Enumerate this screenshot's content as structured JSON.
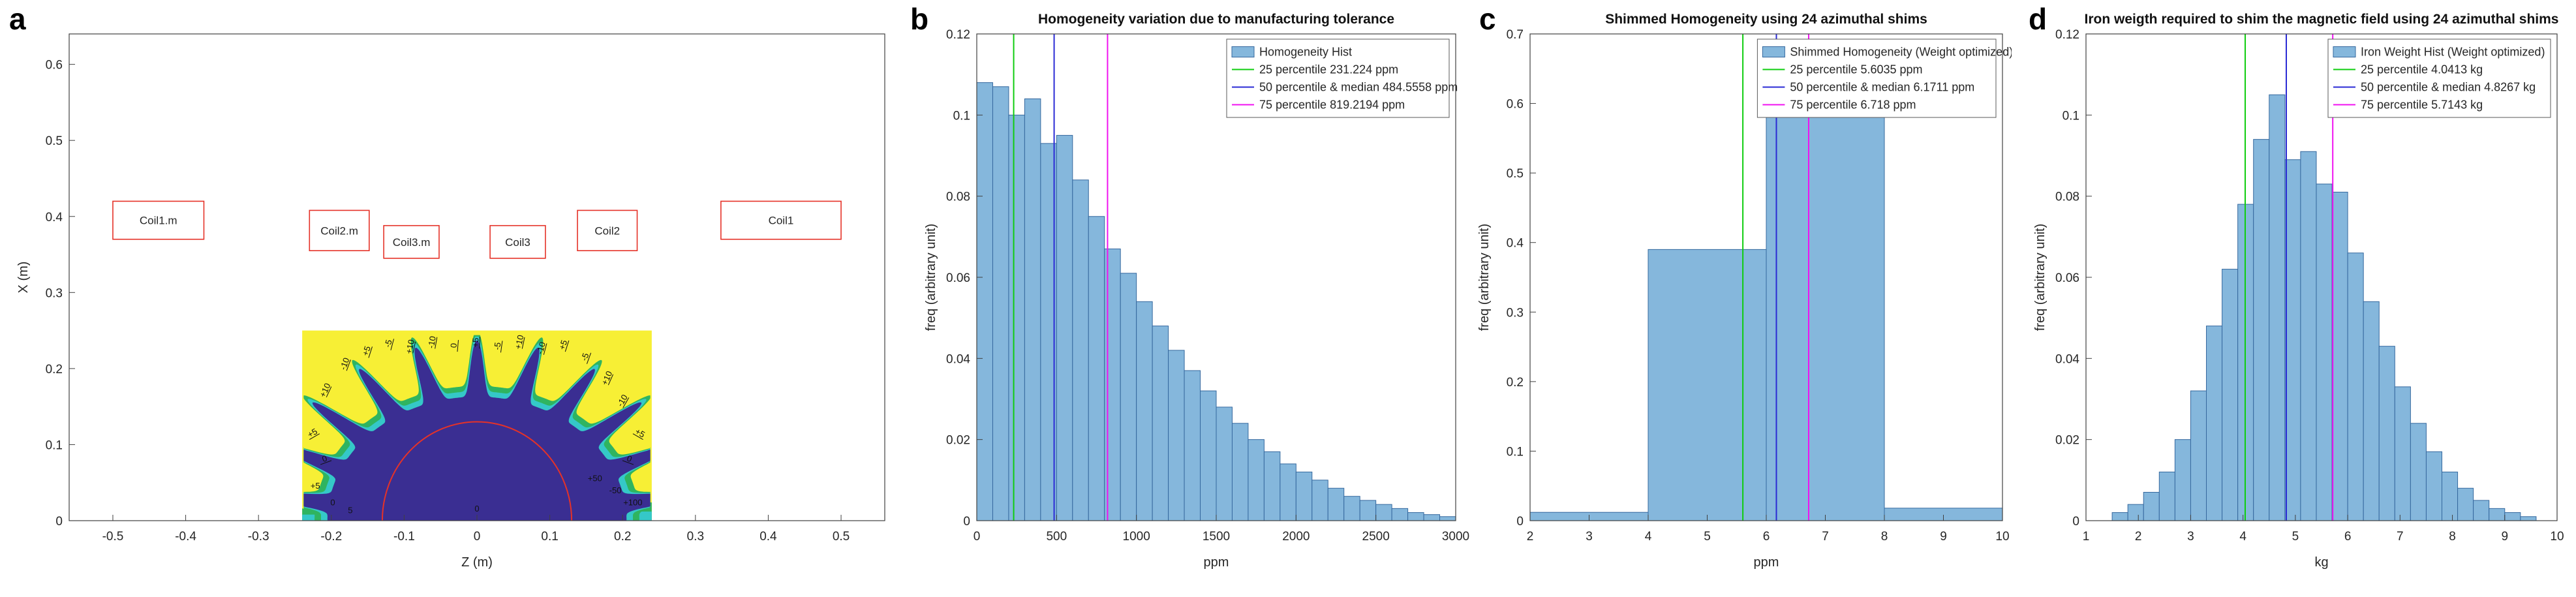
{
  "figure": {
    "panels": [
      {
        "letter": "a"
      },
      {
        "letter": "b"
      },
      {
        "letter": "c"
      },
      {
        "letter": "d"
      }
    ]
  },
  "colors": {
    "bar_face": "#85b7dc",
    "bar_edge": "#35689e",
    "p25": "#0ecc0e",
    "p50": "#2a2ad4",
    "p75": "#f012f0",
    "coil": "#e53228",
    "arc_red": "#e53228",
    "contour_yellow": "#f7ef35",
    "contour_green": "#2fb460",
    "contour_cyan": "#35c8c8",
    "contour_blue": "#3a2e92"
  },
  "chart_data": [
    {
      "type": "heatmap",
      "panel": "a",
      "title": "",
      "xlabel": "Z (m)",
      "ylabel": "X (m)",
      "xlim": [
        -0.56,
        0.56
      ],
      "ylim": [
        0,
        0.64
      ],
      "xticks": [
        -0.5,
        -0.4,
        -0.3,
        -0.2,
        -0.1,
        0,
        0.1,
        0.2,
        0.3,
        0.4,
        0.5
      ],
      "xtick_labels": [
        "-0.5",
        "-0.4",
        "-0.3",
        "-0.2",
        "-0.1",
        "0",
        "0.1",
        "0.2",
        "0.3",
        "0.4",
        "0.5"
      ],
      "yticks": [
        0,
        0.1,
        0.2,
        0.3,
        0.4,
        0.5,
        0.6
      ],
      "ytick_labels": [
        "0",
        "0.1",
        "0.2",
        "0.3",
        "0.4",
        "0.5",
        "0.6"
      ],
      "coils": [
        {
          "label": "Coil1.m",
          "z0": -0.5,
          "z1": -0.375,
          "x0": 0.37,
          "x1": 0.42
        },
        {
          "label": "Coil2.m",
          "z0": -0.23,
          "z1": -0.148,
          "x0": 0.355,
          "x1": 0.408
        },
        {
          "label": "Coil3.m",
          "z0": -0.128,
          "z1": -0.052,
          "x0": 0.345,
          "x1": 0.388
        },
        {
          "label": "Coil3",
          "z0": 0.018,
          "z1": 0.094,
          "x0": 0.345,
          "x1": 0.388
        },
        {
          "label": "Coil2",
          "z0": 0.138,
          "z1": 0.22,
          "x0": 0.355,
          "x1": 0.408
        },
        {
          "label": "Coil1",
          "z0": 0.335,
          "z1": 0.5,
          "x0": 0.37,
          "x1": 0.42
        }
      ],
      "field_box": {
        "z0": -0.24,
        "z1": 0.24,
        "x0": 0,
        "x1": 0.25
      },
      "dome": {
        "base": 0.163,
        "amp": 0.074,
        "spikes": 11,
        "sharpness": 8,
        "zscale": 1.26,
        "green_extra": 0.014,
        "cyan_extra": 0.007
      },
      "arc_radius": 0.13,
      "bottom_strips": [
        {
          "z0": -0.24,
          "z1": -0.198,
          "hg": 0.016,
          "hc": 0.008
        },
        {
          "z0": 0.188,
          "z1": 0.24,
          "hg": 0.024,
          "hc": 0.012
        }
      ],
      "contour_levels_ppm": [
        0,
        5,
        10,
        20,
        50,
        100
      ],
      "contour_labels": [
        {
          "z": -0.205,
          "x": 0.17,
          "text": "+10",
          "rot": -65
        },
        {
          "z": -0.178,
          "x": 0.205,
          "text": "-10",
          "rot": -70
        },
        {
          "z": -0.148,
          "x": 0.222,
          "text": "+5",
          "rot": -72
        },
        {
          "z": -0.118,
          "x": 0.232,
          "text": "-5",
          "rot": -75
        },
        {
          "z": -0.088,
          "x": 0.228,
          "text": "+10",
          "rot": -78
        },
        {
          "z": -0.058,
          "x": 0.234,
          "text": "-10",
          "rot": -80
        },
        {
          "z": -0.028,
          "x": 0.23,
          "text": "0",
          "rot": -85
        },
        {
          "z": 0.002,
          "x": 0.234,
          "text": "+5",
          "rot": -88
        },
        {
          "z": 0.032,
          "x": 0.229,
          "text": "-5",
          "rot": -82
        },
        {
          "z": 0.062,
          "x": 0.234,
          "text": "+10",
          "rot": -78
        },
        {
          "z": 0.092,
          "x": 0.226,
          "text": "-10",
          "rot": -75
        },
        {
          "z": 0.122,
          "x": 0.23,
          "text": "+5",
          "rot": -72
        },
        {
          "z": 0.152,
          "x": 0.214,
          "text": "-5",
          "rot": -70
        },
        {
          "z": 0.182,
          "x": 0.186,
          "text": "+10",
          "rot": -66
        },
        {
          "z": 0.203,
          "x": 0.156,
          "text": "-10",
          "rot": -60
        },
        {
          "z": -0.224,
          "x": 0.112,
          "text": "+5",
          "rot": -30
        },
        {
          "z": -0.208,
          "x": 0.078,
          "text": "0",
          "rot": -20
        },
        {
          "z": 0.222,
          "x": 0.112,
          "text": "+5",
          "rot": 30
        },
        {
          "z": 0.208,
          "x": 0.078,
          "text": "0",
          "rot": 20
        },
        {
          "z": -0.222,
          "x": 0.042,
          "text": "+5",
          "rot": 0
        },
        {
          "z": -0.198,
          "x": 0.02,
          "text": "0",
          "rot": 0
        },
        {
          "z": -0.174,
          "x": 0.01,
          "text": "5",
          "rot": 0
        },
        {
          "z": 0.162,
          "x": 0.052,
          "text": "+50",
          "rot": 0
        },
        {
          "z": 0.19,
          "x": 0.036,
          "text": "-50",
          "rot": 0
        },
        {
          "z": 0.214,
          "x": 0.02,
          "text": "+100",
          "rot": 0
        },
        {
          "z": 0.0,
          "x": 0.012,
          "text": "0",
          "rot": 0
        }
      ]
    },
    {
      "type": "bar",
      "panel": "b",
      "title": "Homogeneity variation due to manufacturing tolerance",
      "xlabel": "ppm",
      "ylabel": "freq (arbitrary unit)",
      "xlim": [
        0,
        3000
      ],
      "ylim": [
        0,
        0.12
      ],
      "xticks": [
        0,
        500,
        1000,
        1500,
        2000,
        2500,
        3000
      ],
      "xtick_labels": [
        "0",
        "500",
        "1000",
        "1500",
        "2000",
        "2500",
        "3000"
      ],
      "yticks": [
        0,
        0.02,
        0.04,
        0.06,
        0.08,
        0.1,
        0.12
      ],
      "ytick_labels": [
        "0",
        "0.02",
        "0.04",
        "0.06",
        "0.08",
        "0.1",
        "0.12"
      ],
      "bin_start": 0,
      "bin_width": 100,
      "values": [
        0.108,
        0.107,
        0.1,
        0.104,
        0.093,
        0.095,
        0.084,
        0.075,
        0.067,
        0.061,
        0.054,
        0.048,
        0.042,
        0.037,
        0.032,
        0.028,
        0.024,
        0.02,
        0.017,
        0.014,
        0.012,
        0.01,
        0.008,
        0.006,
        0.005,
        0.004,
        0.003,
        0.002,
        0.0015,
        0.001
      ],
      "legend": [
        {
          "type": "patch",
          "label": "Homogeneity Hist"
        },
        {
          "type": "line",
          "color_key": "p25",
          "label": "25 percentile 231.224 ppm"
        },
        {
          "type": "line",
          "color_key": "p50",
          "label": "50 percentile & median 484.5558 ppm"
        },
        {
          "type": "line",
          "color_key": "p75",
          "label": "75 percentile 819.2194 ppm"
        }
      ],
      "percentiles": [
        {
          "name": "p25",
          "value": 231.224,
          "color_key": "p25"
        },
        {
          "name": "p50",
          "value": 484.5558,
          "color_key": "p50"
        },
        {
          "name": "p75",
          "value": 819.2194,
          "color_key": "p75"
        }
      ]
    },
    {
      "type": "bar",
      "panel": "c",
      "title": "Shimmed Homogeneity using 24 azimuthal shims",
      "xlabel": "ppm",
      "ylabel": "freq (arbitrary unit)",
      "xlim": [
        2,
        10
      ],
      "ylim": [
        0,
        0.7
      ],
      "xticks": [
        2,
        3,
        4,
        5,
        6,
        7,
        8,
        9,
        10
      ],
      "xtick_labels": [
        "2",
        "3",
        "4",
        "5",
        "6",
        "7",
        "8",
        "9",
        "10"
      ],
      "yticks": [
        0,
        0.1,
        0.2,
        0.3,
        0.4,
        0.5,
        0.6,
        0.7
      ],
      "ytick_labels": [
        "0",
        "0.1",
        "0.2",
        "0.3",
        "0.4",
        "0.5",
        "0.6",
        "0.7"
      ],
      "bin_start": 2,
      "bin_width": 2,
      "values": [
        0.012,
        0.39,
        0.58,
        0.018
      ],
      "legend": [
        {
          "type": "patch",
          "label": "Shimmed Homogeneity (Weight optimized)"
        },
        {
          "type": "line",
          "color_key": "p25",
          "label": "25 percentile 5.6035 ppm"
        },
        {
          "type": "line",
          "color_key": "p50",
          "label": "50 percentile & median 6.1711 ppm"
        },
        {
          "type": "line",
          "color_key": "p75",
          "label": "75 percentile 6.718 ppm"
        }
      ],
      "percentiles": [
        {
          "name": "p25",
          "value": 5.6035,
          "color_key": "p25"
        },
        {
          "name": "p50",
          "value": 6.1711,
          "color_key": "p50"
        },
        {
          "name": "p75",
          "value": 6.718,
          "color_key": "p75"
        }
      ]
    },
    {
      "type": "bar",
      "panel": "d",
      "title": "Iron weigth required to shim the magnetic field using 24 azimuthal shims",
      "xlabel": "kg",
      "ylabel": "freq (arbitrary unit)",
      "xlim": [
        1,
        10
      ],
      "ylim": [
        0,
        0.12
      ],
      "xticks": [
        1,
        2,
        3,
        4,
        5,
        6,
        7,
        8,
        9,
        10
      ],
      "xtick_labels": [
        "1",
        "2",
        "3",
        "4",
        "5",
        "6",
        "7",
        "8",
        "9",
        "10"
      ],
      "yticks": [
        0,
        0.02,
        0.04,
        0.06,
        0.08,
        0.1,
        0.12
      ],
      "ytick_labels": [
        "0",
        "0.02",
        "0.04",
        "0.06",
        "0.08",
        "0.1",
        "0.12"
      ],
      "bin_start": 1.5,
      "bin_width": 0.3,
      "values": [
        0.002,
        0.004,
        0.007,
        0.012,
        0.02,
        0.032,
        0.048,
        0.062,
        0.078,
        0.094,
        0.105,
        0.089,
        0.091,
        0.083,
        0.081,
        0.066,
        0.054,
        0.043,
        0.033,
        0.024,
        0.017,
        0.012,
        0.008,
        0.005,
        0.003,
        0.002,
        0.001
      ],
      "legend": [
        {
          "type": "patch",
          "label": "Iron Weight Hist (Weight optimized)"
        },
        {
          "type": "line",
          "color_key": "p25",
          "label": "25 percentile 4.0413 kg"
        },
        {
          "type": "line",
          "color_key": "p50",
          "label": "50 percentile & median 4.8267 kg"
        },
        {
          "type": "line",
          "color_key": "p75",
          "label": "75 percentile 5.7143 kg"
        }
      ],
      "percentiles": [
        {
          "name": "p25",
          "value": 4.0413,
          "color_key": "p25"
        },
        {
          "name": "p50",
          "value": 4.8267,
          "color_key": "p50"
        },
        {
          "name": "p75",
          "value": 5.7143,
          "color_key": "p75"
        }
      ]
    }
  ]
}
